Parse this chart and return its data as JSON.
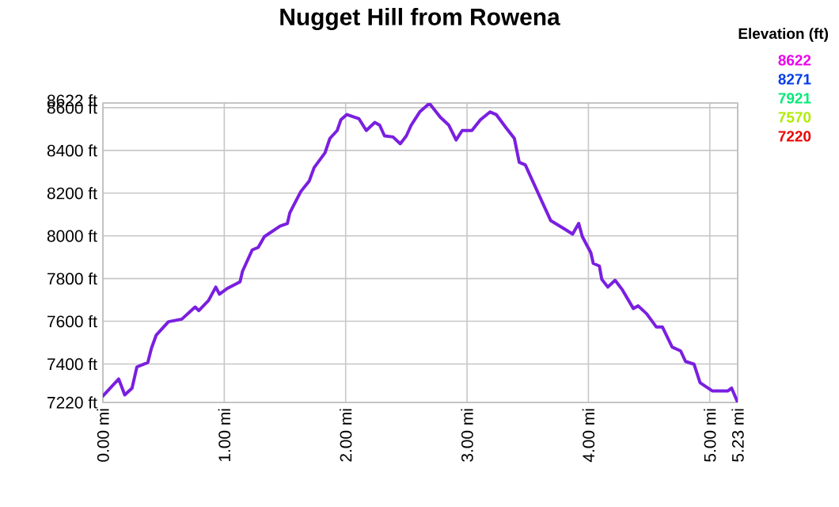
{
  "chart_data": {
    "type": "line",
    "title": "Nugget Hill from Rowena",
    "x": [
      0,
      0.13,
      0.18,
      0.24,
      0.28,
      0.37,
      0.4,
      0.44,
      0.54,
      0.65,
      0.76,
      0.79,
      0.87,
      0.93,
      0.96,
      1.02,
      1.13,
      1.15,
      1.23,
      1.28,
      1.33,
      1.46,
      1.52,
      1.54,
      1.63,
      1.7,
      1.74,
      1.83,
      1.87,
      1.93,
      1.96,
      2.01,
      2.11,
      2.17,
      2.24,
      2.28,
      2.32,
      2.39,
      2.45,
      2.5,
      2.54,
      2.61,
      2.69,
      2.78,
      2.85,
      2.91,
      2.96,
      3.04,
      3.11,
      3.19,
      3.24,
      3.32,
      3.39,
      3.43,
      3.48,
      3.54,
      3.63,
      3.69,
      3.8,
      3.87,
      3.92,
      3.95,
      4.02,
      4.04,
      4.09,
      4.11,
      4.16,
      4.22,
      4.28,
      4.37,
      4.41,
      4.48,
      4.56,
      4.61,
      4.69,
      4.76,
      4.8,
      4.87,
      4.92,
      5.02,
      5.15,
      5.18,
      5.23
    ],
    "values": [
      7250,
      7330,
      7255,
      7287,
      7386,
      7407,
      7474,
      7536,
      7598,
      7610,
      7667,
      7650,
      7697,
      7760,
      7727,
      7752,
      7785,
      7834,
      7934,
      7946,
      7996,
      8046,
      8058,
      8108,
      8207,
      8257,
      8319,
      8389,
      8456,
      8493,
      8543,
      8568,
      8548,
      8493,
      8531,
      8518,
      8468,
      8463,
      8431,
      8468,
      8518,
      8580,
      8620,
      8555,
      8518,
      8449,
      8493,
      8493,
      8543,
      8580,
      8568,
      8507,
      8456,
      8344,
      8332,
      8257,
      8145,
      8071,
      8033,
      8008,
      8058,
      7996,
      7921,
      7871,
      7859,
      7797,
      7760,
      7792,
      7747,
      7660,
      7672,
      7635,
      7573,
      7573,
      7479,
      7461,
      7412,
      7399,
      7312,
      7274,
      7274,
      7287,
      7220
    ],
    "xlim": [
      0,
      5.23
    ],
    "ylim": [
      7220,
      8622
    ],
    "xticks": [
      {
        "value": 0,
        "label": "0.00 mi"
      },
      {
        "value": 1,
        "label": "1.00 mi"
      },
      {
        "value": 2,
        "label": "2.00 mi"
      },
      {
        "value": 3,
        "label": "3.00 mi"
      },
      {
        "value": 4,
        "label": "4.00 mi"
      },
      {
        "value": 5,
        "label": "5.00 mi"
      },
      {
        "value": 5.23,
        "label": "5.23 mi"
      }
    ],
    "yticks": [
      {
        "value": 7220,
        "label": "7220 ft"
      },
      {
        "value": 7400,
        "label": "7400 ft"
      },
      {
        "value": 7600,
        "label": "7600 ft"
      },
      {
        "value": 7800,
        "label": "7800 ft"
      },
      {
        "value": 8000,
        "label": "8000 ft"
      },
      {
        "value": 8200,
        "label": "8200 ft"
      },
      {
        "value": 8400,
        "label": "8400 ft"
      },
      {
        "value": 8600,
        "label": "8600 ft"
      },
      {
        "value": 8622,
        "label": "8622 ft"
      }
    ],
    "grid": true,
    "color": "#7a1fe0",
    "clabel": "Elevation (ft)",
    "annotations": [
      "8622",
      "8271",
      "7921",
      "7570",
      "7220"
    ]
  }
}
